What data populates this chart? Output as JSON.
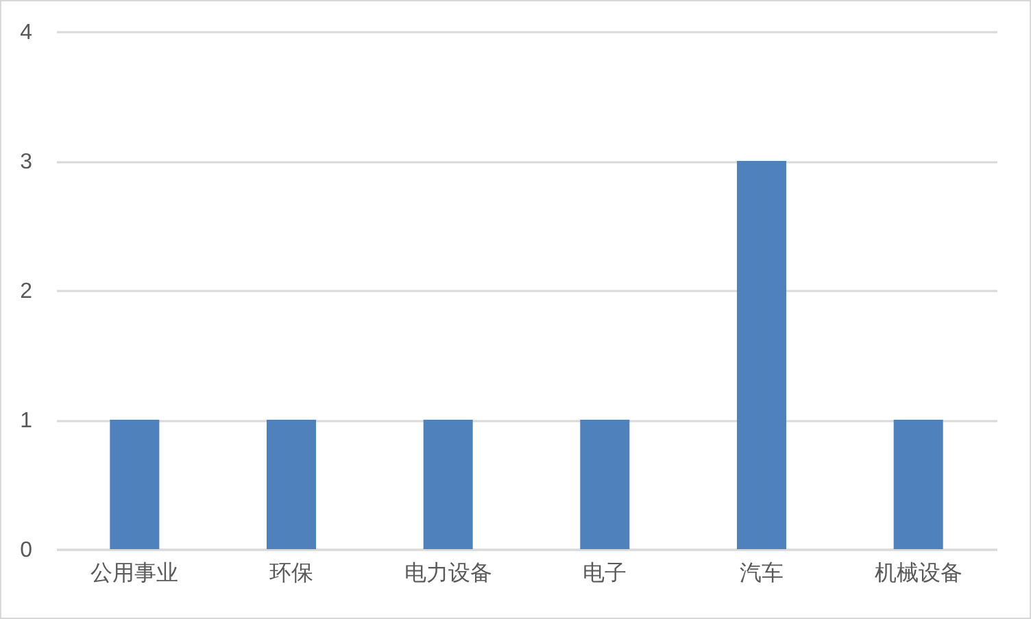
{
  "chart_data": {
    "type": "bar",
    "categories": [
      "公用事业",
      "环保",
      "电力设备",
      "电子",
      "汽车",
      "机械设备"
    ],
    "values": [
      1,
      1,
      1,
      1,
      3,
      1
    ],
    "color": "#4f81bd",
    "ylim": [
      0,
      4
    ],
    "yticks": [
      0,
      1,
      2,
      3,
      4
    ],
    "grid": "y"
  }
}
